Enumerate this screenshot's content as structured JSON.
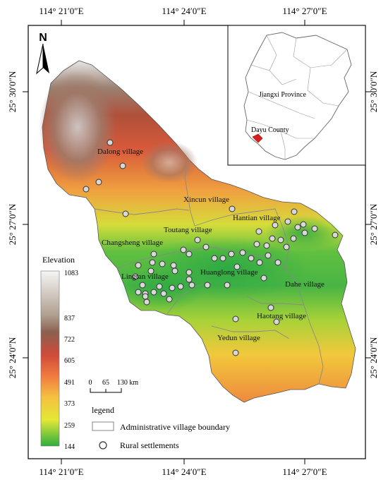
{
  "map": {
    "north_label": "N",
    "lon_ticks": [
      "114° 21′0″E",
      "114° 24′0″E",
      "114° 27′0″E"
    ],
    "lat_ticks": [
      "25° 30′0″N",
      "25° 27′0″N",
      "25° 24′0″N"
    ],
    "villages": [
      "Dalong village",
      "Xincun village",
      "Hantian village",
      "Toutang village",
      "Changsheng village",
      "Huanglong village",
      "Lingtan village",
      "Dahe village",
      "Haotang village",
      "Yedun village"
    ]
  },
  "inset": {
    "province_label": "Jiangxi Province",
    "county_label": "Dayu County"
  },
  "elevation": {
    "title": "Elevation",
    "values": [
      "1083",
      "837",
      "722",
      "605",
      "491",
      "373",
      "259",
      "144"
    ],
    "colors": {
      "high": "#f2f2f2",
      "upper": "#8c6a55",
      "mid_high": "#d04a3a",
      "mid": "#f08040",
      "mid_low": "#f5c040",
      "low": "#d8e030",
      "lowest": "#32b040"
    }
  },
  "scale": {
    "labels": [
      "0",
      "65",
      "130 km"
    ]
  },
  "legend": {
    "title": "legend",
    "items": [
      "Administrative village boundary",
      "Rural settlements"
    ]
  }
}
